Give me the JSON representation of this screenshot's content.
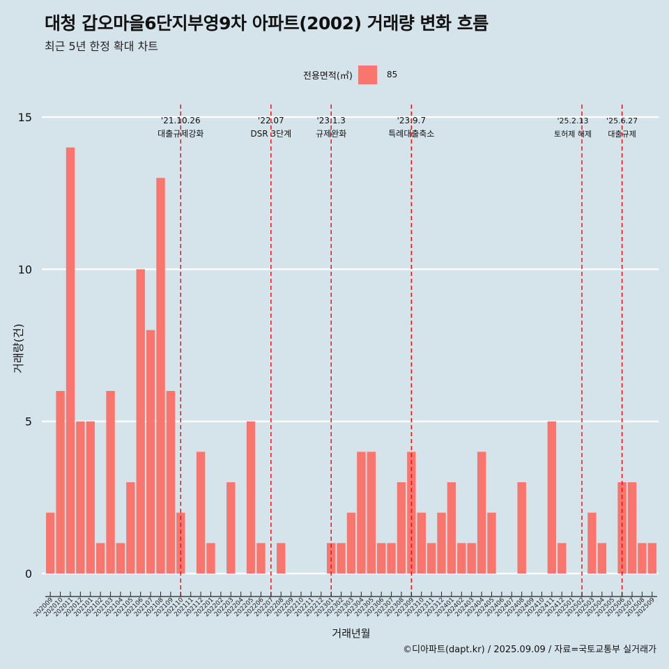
{
  "header": {
    "title": "대청 갑오마을6단지부영9차 아파트(2002) 거래량 변화 흐름",
    "subtitle": "최근 5년 한정 확대 차트"
  },
  "legend": {
    "title": "전용면적(㎡)",
    "item": "85"
  },
  "caption": "©디아파트(dapt.kr) / 2025.09.09 / 자료=국토교통부 실거래가",
  "colors": {
    "bar": "#f8766d",
    "background": "#d5e3ea",
    "event_line": "#ee1111",
    "grid": "#ffffff"
  },
  "chart_data": {
    "type": "bar",
    "xlabel": "거래년월",
    "ylabel": "거래량(건)",
    "ylim": [
      0,
      15
    ],
    "yticks": [
      0,
      5,
      10,
      15
    ],
    "grid": true,
    "legend_position": "top",
    "categories": [
      "202009",
      "202010",
      "202011",
      "202012",
      "202101",
      "202102",
      "202103",
      "202104",
      "202105",
      "202106",
      "202107",
      "202108",
      "202109",
      "202110",
      "202111",
      "202112",
      "202201",
      "202202",
      "202203",
      "202204",
      "202205",
      "202206",
      "202207",
      "202208",
      "202209",
      "202210",
      "202211",
      "202212",
      "202301",
      "202302",
      "202303",
      "202304",
      "202305",
      "202306",
      "202307",
      "202308",
      "202309",
      "202310",
      "202311",
      "202312",
      "202401",
      "202402",
      "202403",
      "202404",
      "202405",
      "202406",
      "202407",
      "202408",
      "202409",
      "202410",
      "202411",
      "202412",
      "202501",
      "202502",
      "202503",
      "202504",
      "202505",
      "202506",
      "202507",
      "202508",
      "202509"
    ],
    "series": [
      {
        "name": "85",
        "values": [
          2,
          6,
          14,
          5,
          5,
          1,
          6,
          1,
          3,
          10,
          8,
          13,
          6,
          2,
          0,
          4,
          1,
          0,
          3,
          0,
          5,
          1,
          0,
          1,
          0,
          0,
          0,
          0,
          1,
          1,
          2,
          4,
          4,
          1,
          1,
          3,
          4,
          2,
          1,
          2,
          3,
          1,
          1,
          4,
          2,
          0,
          0,
          3,
          0,
          0,
          5,
          1,
          0,
          0,
          2,
          1,
          0,
          3,
          3,
          1,
          1
        ]
      }
    ],
    "events": [
      {
        "date": "'21.10.26",
        "label": "대출규제강화",
        "at": "202110"
      },
      {
        "date": "'22.07",
        "label": "DSR 3단계",
        "at": "202207"
      },
      {
        "date": "'23.1.3",
        "label": "규제완화",
        "at": "202301"
      },
      {
        "date": "'23.9.7",
        "label": "특례대출축소",
        "at": "202309"
      },
      {
        "date": "'25.2.13",
        "label": "토허제 해제",
        "at": "202502"
      },
      {
        "date": "'25.6.27",
        "label": "대출규제",
        "at": "202506"
      }
    ]
  }
}
